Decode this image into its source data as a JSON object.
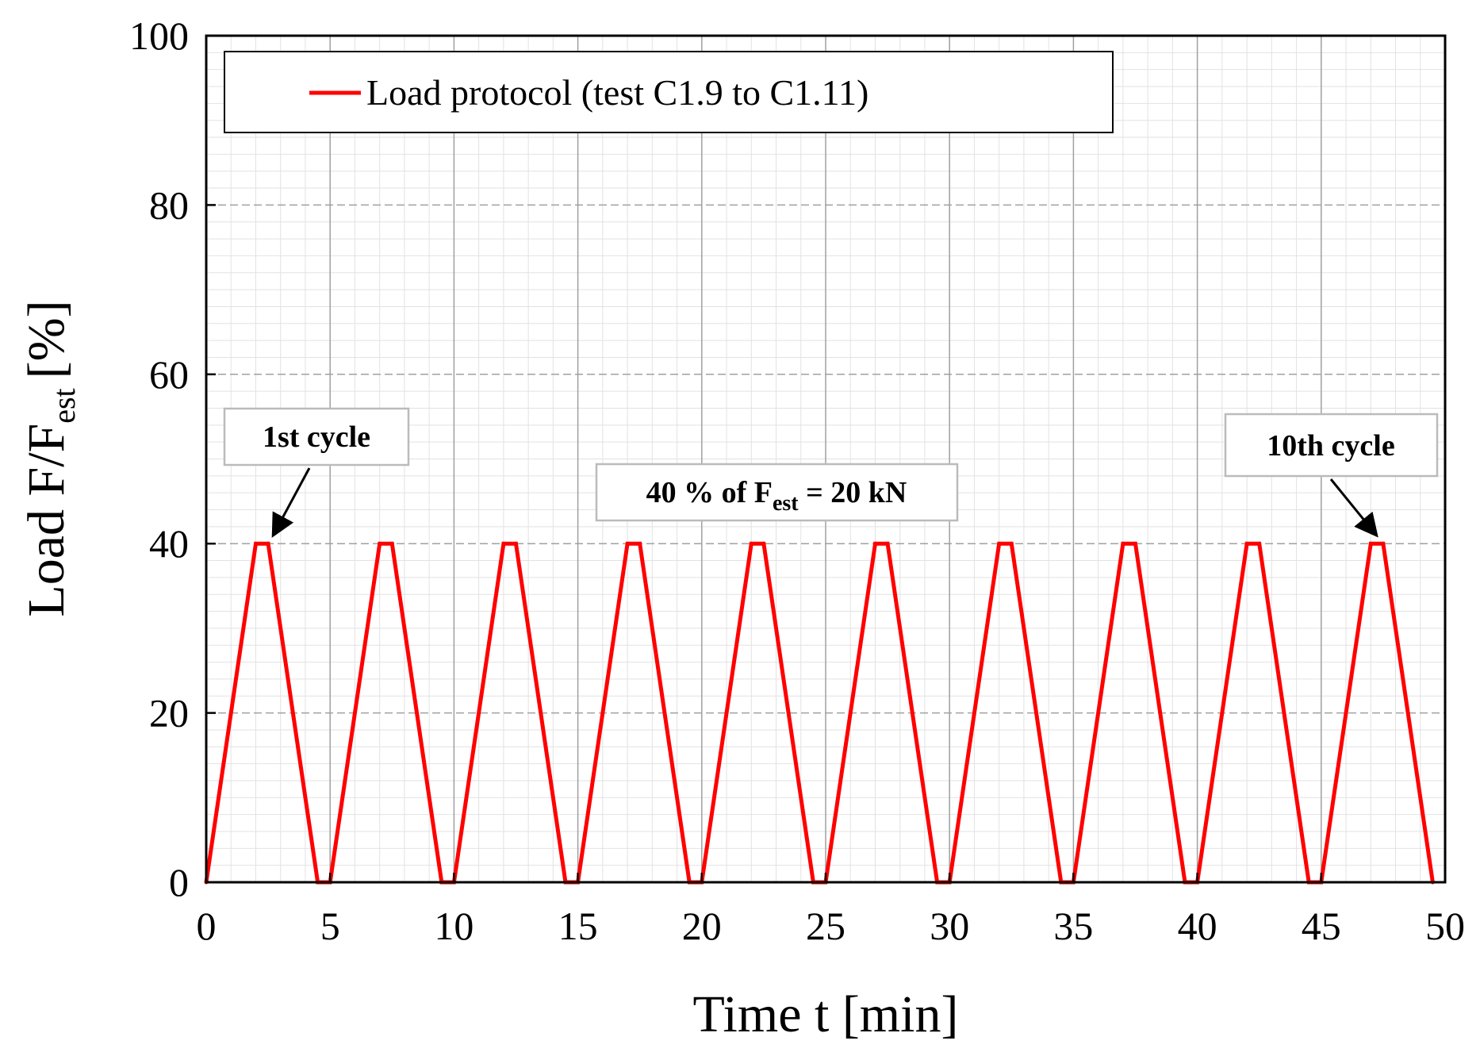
{
  "chart_data": {
    "type": "line",
    "title": "",
    "xlabel": "Time t [min]",
    "ylabel": {
      "main": "Load F/F",
      "sub": "est",
      "unit": "[%]"
    },
    "xlim": [
      0,
      50
    ],
    "ylim": [
      0,
      100
    ],
    "x_ticks": [
      0,
      5,
      10,
      15,
      20,
      25,
      30,
      35,
      40,
      45,
      50
    ],
    "y_ticks": [
      0,
      20,
      40,
      60,
      80,
      100
    ],
    "grid": "major and minor",
    "legend": {
      "position": "top-left",
      "entries": [
        "Load protocol (test C1.9 to C1.11)"
      ]
    },
    "series": [
      {
        "name": "Load protocol (test C1.9 to C1.11)",
        "color": "#ff0000",
        "x": [
          0,
          2.0,
          2.5,
          4.5,
          5.0,
          7.0,
          7.5,
          9.5,
          10.0,
          12.0,
          12.5,
          14.5,
          15.0,
          17.0,
          17.5,
          19.5,
          20.0,
          22.0,
          22.5,
          24.5,
          25.0,
          27.0,
          27.5,
          29.5,
          30.0,
          32.0,
          32.5,
          34.5,
          35.0,
          37.0,
          37.5,
          39.5,
          40.0,
          42.0,
          42.5,
          44.5,
          45.0,
          47.0,
          47.5,
          49.5
        ],
        "y": [
          0,
          40,
          40,
          0,
          0,
          40,
          40,
          0,
          0,
          40,
          40,
          0,
          0,
          40,
          40,
          0,
          0,
          40,
          40,
          0,
          0,
          40,
          40,
          0,
          0,
          40,
          40,
          0,
          0,
          40,
          40,
          0,
          0,
          40,
          40,
          0,
          0,
          40,
          40,
          0
        ]
      }
    ],
    "annotations": [
      {
        "text": "1st cycle",
        "arrow_to": [
          2.5,
          40
        ]
      },
      {
        "text_main": "40 % of F",
        "text_sub": "est",
        "text_tail": " = 20 kN"
      },
      {
        "text": "10th cycle",
        "arrow_to": [
          47.5,
          40
        ]
      }
    ]
  }
}
